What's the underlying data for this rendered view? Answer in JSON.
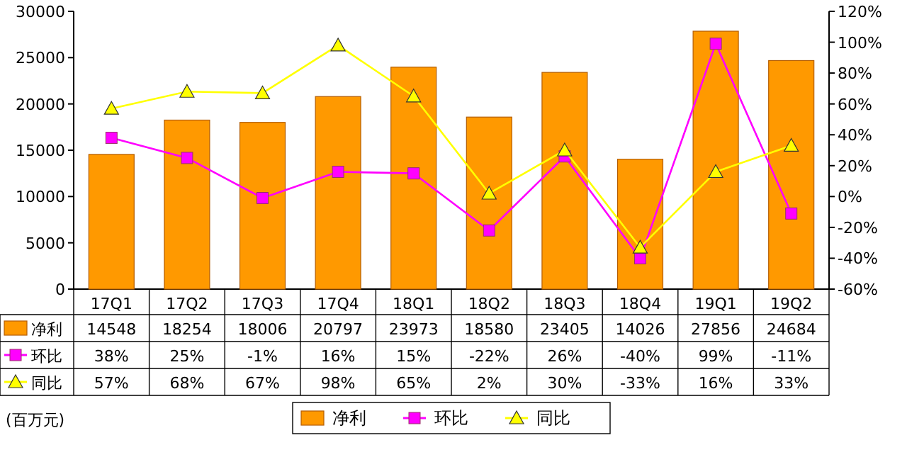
{
  "chart_data": {
    "type": "bar",
    "categories": [
      "17Q1",
      "17Q2",
      "17Q3",
      "17Q4",
      "18Q1",
      "18Q2",
      "18Q3",
      "18Q4",
      "19Q1",
      "19Q2"
    ],
    "series": [
      {
        "name": "净利",
        "color": "#ff9900",
        "values": [
          14548,
          18254,
          18006,
          20797,
          23973,
          18580,
          23405,
          14026,
          27856,
          24684
        ]
      },
      {
        "name": "环比",
        "type": "line",
        "axis": "y2",
        "marker": "square",
        "color": "#ff00ff",
        "values": [
          38,
          25,
          -1,
          16,
          15,
          -22,
          26,
          -40,
          99,
          -11
        ],
        "value_labels": [
          "38%",
          "25%",
          "-1%",
          "16%",
          "15%",
          "-22%",
          "26%",
          "-40%",
          "99%",
          "-11%"
        ]
      },
      {
        "name": "同比",
        "type": "line",
        "axis": "y2",
        "marker": "triangle",
        "color": "#ffff00",
        "values": [
          57,
          68,
          67,
          98,
          65,
          2,
          30,
          -33,
          16,
          33
        ],
        "value_labels": [
          "57%",
          "68%",
          "67%",
          "98%",
          "65%",
          "2%",
          "30%",
          "-33%",
          "16%",
          "33%"
        ]
      }
    ],
    "ylim": [
      0,
      30000
    ],
    "yticks": [
      0,
      5000,
      10000,
      15000,
      20000,
      25000,
      30000
    ],
    "y2lim": [
      -60,
      120
    ],
    "y2ticks": [
      {
        "value": -60,
        "label": "-60%"
      },
      {
        "value": -40,
        "label": "-40%"
      },
      {
        "value": -20,
        "label": "-20%"
      },
      {
        "value": 0,
        "label": "0%"
      },
      {
        "value": 20,
        "label": "20%"
      },
      {
        "value": 40,
        "label": "40%"
      },
      {
        "value": 60,
        "label": "60%"
      },
      {
        "value": 80,
        "label": "80%"
      },
      {
        "value": 100,
        "label": "100%"
      },
      {
        "value": 120,
        "label": "120%"
      }
    ],
    "data_labels": true,
    "legend": "bottom",
    "annotations": [
      "(百万元)"
    ]
  }
}
